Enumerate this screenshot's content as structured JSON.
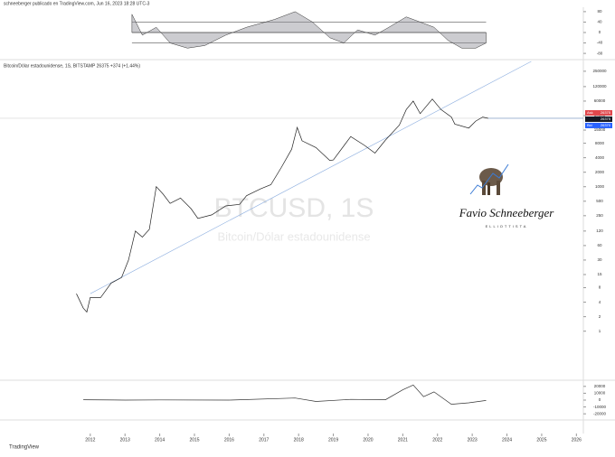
{
  "header": {
    "published": "schneeberger publicado en TradingView.com, Jun 16, 2023 18:28 UTC-3"
  },
  "watermark": {
    "symbol": "BTCUSD, 1S",
    "description": "Bitcoin/Dólar estadounidense"
  },
  "branding": {
    "name": "Favio Schneeberger",
    "tagline": "ELLIOTTISTA",
    "footer": "TradingView"
  },
  "price_badges": [
    {
      "label": "Ask",
      "value": "26375"
    },
    {
      "label": "",
      "value": "26375"
    },
    {
      "label": "Bid",
      "value": "26370"
    }
  ],
  "chart_data": [
    {
      "type": "area",
      "color": "#8e8e96",
      "x": [
        2013.2,
        2013.5,
        2013.9,
        2014.3,
        2014.8,
        2015.3,
        2015.9,
        2016.5,
        2017.3,
        2017.9,
        2018.4,
        2018.9,
        2019.3,
        2019.7,
        2020.2,
        2020.6,
        2021.1,
        2021.5,
        2021.9,
        2022.3,
        2022.7,
        2023.1,
        2023.4
      ],
      "values": [
        70,
        -10,
        20,
        -40,
        -60,
        -50,
        -10,
        20,
        50,
        80,
        40,
        -20,
        -40,
        10,
        -10,
        20,
        60,
        40,
        20,
        -30,
        -60,
        -60,
        -40
      ],
      "levels": [
        40,
        0,
        -40
      ],
      "xlim": [
        2009.4,
        2026.2
      ],
      "ylim": [
        -90,
        90
      ],
      "yticks": [
        80,
        40,
        0,
        -40,
        -80
      ]
    },
    {
      "type": "line",
      "title": "Bitcoin/Dólar estadounidense, 1S, BITSTAMP  26375  +374 (+1.44%)",
      "color": "#222",
      "log": true,
      "x": [
        2011.6,
        2011.8,
        2011.9,
        2012.0,
        2012.3,
        2012.6,
        2012.9,
        2013.1,
        2013.3,
        2013.5,
        2013.7,
        2013.9,
        2014.1,
        2014.3,
        2014.6,
        2014.9,
        2015.1,
        2015.5,
        2015.9,
        2016.3,
        2016.5,
        2016.9,
        2017.2,
        2017.5,
        2017.8,
        2017.96,
        2018.1,
        2018.5,
        2018.9,
        2019.0,
        2019.5,
        2019.9,
        2020.2,
        2020.5,
        2020.9,
        2021.1,
        2021.3,
        2021.5,
        2021.85,
        2022.1,
        2022.4,
        2022.5,
        2022.9,
        2023.1,
        2023.3,
        2023.46
      ],
      "values": [
        6,
        3,
        2.5,
        5,
        5,
        10,
        13,
        30,
        120,
        90,
        130,
        1000,
        700,
        450,
        580,
        350,
        220,
        260,
        400,
        430,
        650,
        900,
        1100,
        2500,
        6000,
        17000,
        9000,
        6500,
        3500,
        3600,
        11000,
        7200,
        5000,
        9300,
        19000,
        40000,
        60000,
        33000,
        66000,
        40000,
        28000,
        20000,
        16500,
        23000,
        28000,
        26375
      ],
      "trendline": {
        "x": [
          2012.0,
          2024.7
        ],
        "values": [
          6,
          400000
        ]
      },
      "price_line": 26375,
      "xlim": [
        2009.4,
        2026.2
      ],
      "ylim": [
        0.1,
        400000
      ],
      "xticks": [
        2012,
        2013,
        2014,
        2015,
        2016,
        2017,
        2018,
        2019,
        2020,
        2021,
        2022,
        2023,
        2024,
        2025,
        2026
      ],
      "yticks": [
        1,
        2,
        4,
        8,
        15,
        30,
        60,
        120,
        250,
        500,
        1000,
        2000,
        4000,
        8000,
        15000,
        30000,
        60000,
        120000,
        250000
      ]
    },
    {
      "type": "line",
      "color": "#333",
      "x": [
        2011.8,
        2013.0,
        2014.0,
        2016.0,
        2017.9,
        2018.5,
        2019.5,
        2020.5,
        2021.0,
        2021.3,
        2021.6,
        2021.9,
        2022.4,
        2022.9,
        2023.4
      ],
      "values": [
        500,
        0,
        200,
        0,
        3000,
        -2000,
        1000,
        500,
        15000,
        22000,
        5000,
        12000,
        -6000,
        -4000,
        -500
      ],
      "xlim": [
        2009.4,
        2026.2
      ],
      "ylim": [
        -25000,
        25000
      ],
      "yticks": [
        20000,
        10000,
        0,
        -10000,
        -20000
      ]
    }
  ]
}
